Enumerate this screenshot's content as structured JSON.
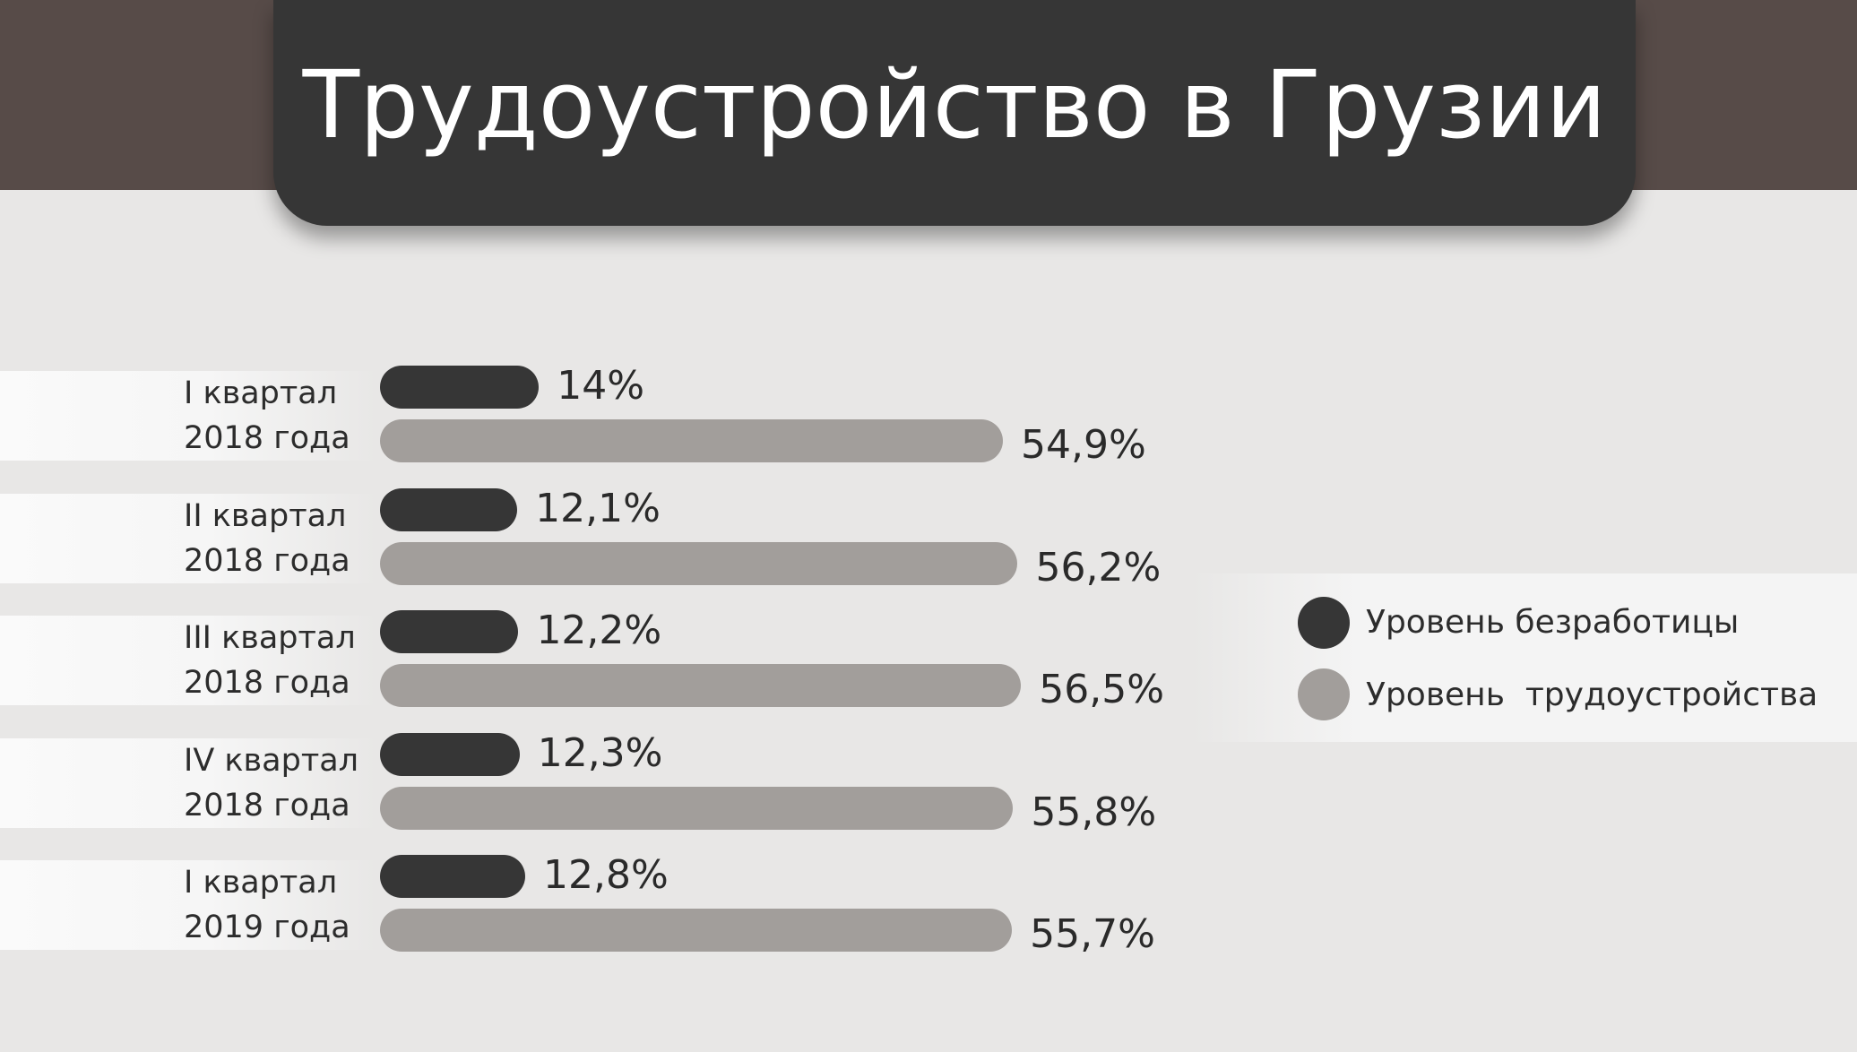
{
  "title": "Трудоустройство в Грузии",
  "chart_data": {
    "type": "bar",
    "orientation": "horizontal",
    "categories": [
      [
        "I квартал",
        "2018 года"
      ],
      [
        "II квартал",
        "2018 года"
      ],
      [
        "III квартал",
        "2018 года"
      ],
      [
        "IV квартал",
        "2018 года"
      ],
      [
        "I квартал",
        "2019 года"
      ]
    ],
    "series": [
      {
        "name": "Уровень безработицы",
        "color": "#363636",
        "values": [
          14,
          12.1,
          12.2,
          12.3,
          12.8
        ],
        "labels": [
          "14%",
          "12,1%",
          "12,2%",
          "12,3%",
          "12,8%"
        ]
      },
      {
        "name": "Уровень  трудоустройства",
        "color": "#a29e9b",
        "values": [
          54.9,
          56.2,
          56.5,
          55.8,
          55.7
        ],
        "labels": [
          "54,9%",
          "56,2%",
          "56,5%",
          "55,8%",
          "55,7%"
        ]
      }
    ],
    "legend_position": "right",
    "grid": false
  }
}
